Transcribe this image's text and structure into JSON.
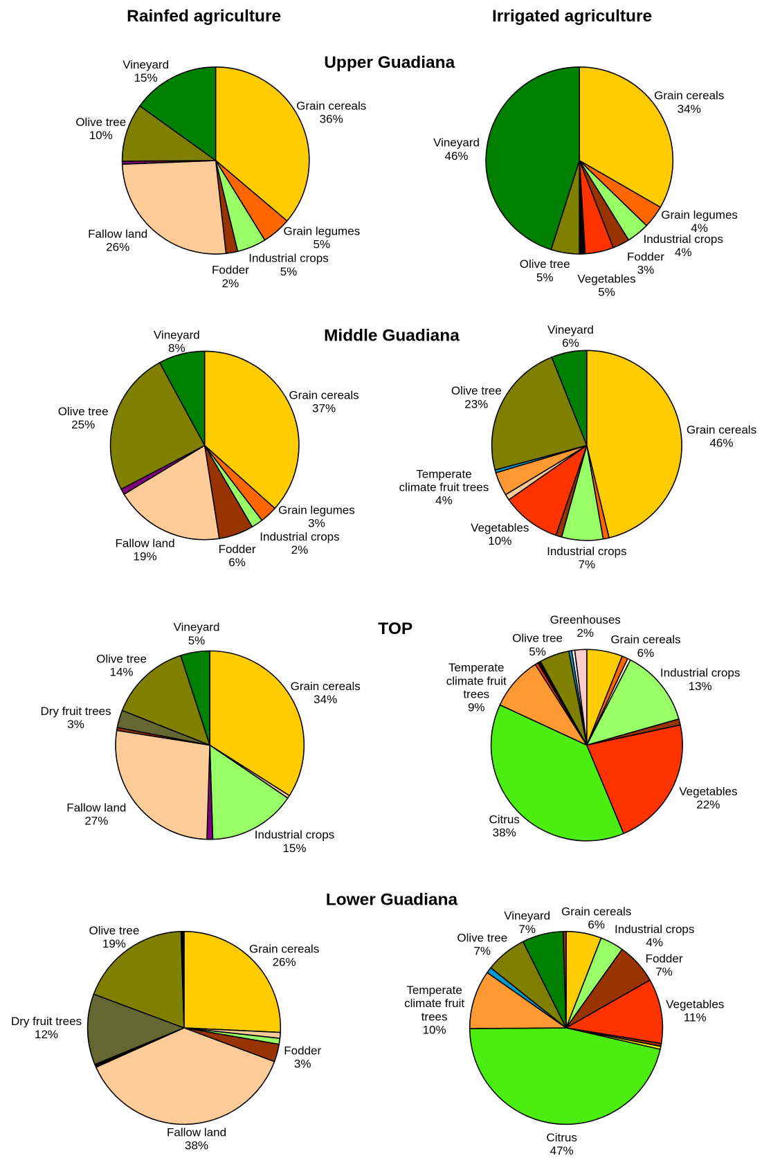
{
  "figure": {
    "column_titles": [
      "Rainfed agriculture",
      "Irrigated agriculture"
    ],
    "row_titles": [
      "Upper Guadiana",
      "Middle Guadiana",
      "TOP",
      "Lower Guadiana"
    ]
  },
  "chart_data": [
    {
      "type": "pie",
      "categories": [
        "Grain cereals",
        "Grain legumes",
        "Industrial crops",
        "Fodder",
        "Fallow land",
        null,
        "Olive tree",
        "Vineyard"
      ],
      "values": [
        36,
        5,
        5,
        2,
        26,
        0.5,
        10,
        15
      ],
      "value_labels": [
        "36%",
        "5%",
        "5%",
        "2%",
        "26%",
        null,
        "10%",
        "15%"
      ],
      "colors": [
        "#FFCC00",
        "#FF6600",
        "#99FF66",
        "#993300",
        "#FFCC99",
        "#800080",
        "#808000",
        "#008000"
      ]
    },
    {
      "type": "pie",
      "categories": [
        "Grain cereals",
        "Grain legumes",
        "Industrial crops",
        "Fodder",
        "Vegetables",
        null,
        "Olive tree",
        "Vineyard"
      ],
      "values": [
        34,
        4,
        4,
        3,
        5,
        1,
        5,
        46
      ],
      "value_labels": [
        "34%",
        "4%",
        "4%",
        "3%",
        "5%",
        null,
        "5%",
        "46%"
      ],
      "colors": [
        "#FFCC00",
        "#FF6600",
        "#99FF66",
        "#993300",
        "#FF3300",
        "#000000",
        "#808000",
        "#008000"
      ]
    },
    {
      "type": "pie",
      "categories": [
        "Grain cereals",
        "Grain legumes",
        "Industrial crops",
        "Fodder",
        "Fallow land",
        null,
        "Olive tree",
        "Vineyard"
      ],
      "values": [
        37,
        3,
        2,
        6,
        19,
        1,
        25,
        8
      ],
      "value_labels": [
        "37%",
        "3%",
        "2%",
        "6%",
        "19%",
        null,
        "25%",
        "8%"
      ],
      "colors": [
        "#FFCC00",
        "#FF6600",
        "#99FF66",
        "#993300",
        "#FFCC99",
        "#800080",
        "#808000",
        "#008000"
      ]
    },
    {
      "type": "pie",
      "categories": [
        "Grain cereals",
        null,
        "Industrial crops",
        null,
        "Vegetables",
        null,
        "Temperate climate fruit trees",
        null,
        "Olive tree",
        "Vineyard"
      ],
      "values": [
        46,
        1,
        7,
        1,
        10,
        1,
        4,
        0.5,
        23,
        6
      ],
      "value_labels": [
        "46%",
        null,
        "7%",
        null,
        "10%",
        null,
        "4%",
        null,
        "23%",
        "6%"
      ],
      "colors": [
        "#FFCC00",
        "#FF6600",
        "#99FF66",
        "#993300",
        "#FF3300",
        "#FFCC99",
        "#FF9933",
        "#0099CC",
        "#808000",
        "#008000"
      ]
    },
    {
      "type": "pie",
      "categories": [
        "Grain cereals",
        null,
        "Industrial crops",
        null,
        "Fallow land",
        null,
        "Dry fruit trees",
        "Olive tree",
        "Vineyard"
      ],
      "values": [
        34,
        0.5,
        15,
        1,
        27,
        0.5,
        3,
        14,
        5
      ],
      "value_labels": [
        "34%",
        null,
        "15%",
        null,
        "27%",
        null,
        "3%",
        "14%",
        "5%"
      ],
      "colors": [
        "#FFCC00",
        "#FFCC99",
        "#99FF66",
        "#800080",
        "#FFCC99",
        "#993300",
        "#666633",
        "#808000",
        "#008000"
      ]
    },
    {
      "type": "pie",
      "categories": [
        "Grain cereals",
        null,
        null,
        "Industrial crops",
        null,
        "Vegetables",
        "Citrus",
        "Temperate climate fruit trees",
        null,
        null,
        "Olive tree",
        null,
        null,
        "Greenhouses"
      ],
      "values": [
        6,
        1,
        0.5,
        13,
        1,
        22,
        38,
        9,
        0.5,
        0.5,
        5,
        0.5,
        0.5,
        2
      ],
      "value_labels": [
        "6%",
        null,
        null,
        "13%",
        null,
        "22%",
        "38%",
        "9%",
        null,
        null,
        "5%",
        null,
        null,
        "2%"
      ],
      "colors": [
        "#FFCC00",
        "#FF6600",
        "#FFFFCC",
        "#99FF66",
        "#993300",
        "#FF3300",
        "#4CEE11",
        "#FF9933",
        "#FF3300",
        "#000000",
        "#808000",
        "#0099CC",
        "#FFFFFF",
        "#FFCCCC"
      ]
    },
    {
      "type": "pie",
      "categories": [
        "Grain cereals",
        null,
        null,
        "Fodder",
        "Fallow land",
        null,
        "Dry fruit trees",
        "Olive tree",
        null
      ],
      "values": [
        26,
        1,
        1,
        3,
        38,
        0.5,
        12,
        19,
        0.5
      ],
      "value_labels": [
        "26%",
        null,
        null,
        "3%",
        "38%",
        null,
        "12%",
        "19%",
        null
      ],
      "colors": [
        "#FFCC00",
        "#FFCC99",
        "#99FF66",
        "#993300",
        "#FFCC99",
        "#000000",
        "#666633",
        "#808000",
        "#000000"
      ]
    },
    {
      "type": "pie",
      "categories": [
        "Grain cereals",
        "Industrial crops",
        "Fodder",
        "Vegetables",
        null,
        null,
        "Citrus",
        "Temperate climate fruit trees",
        null,
        "Olive tree",
        "Vineyard",
        null
      ],
      "values": [
        6,
        4,
        7,
        11,
        0.5,
        0.5,
        47,
        10,
        1,
        7,
        7,
        0.5
      ],
      "value_labels": [
        "6%",
        "4%",
        "7%",
        "11%",
        null,
        null,
        "47%",
        "10%",
        null,
        "7%",
        "7%",
        null
      ],
      "colors": [
        "#FFCC00",
        "#99FF66",
        "#993300",
        "#FF3300",
        "#993300",
        "#FFFF00",
        "#4CEE11",
        "#FF9933",
        "#0099CC",
        "#808000",
        "#008000",
        "#993300"
      ]
    }
  ]
}
